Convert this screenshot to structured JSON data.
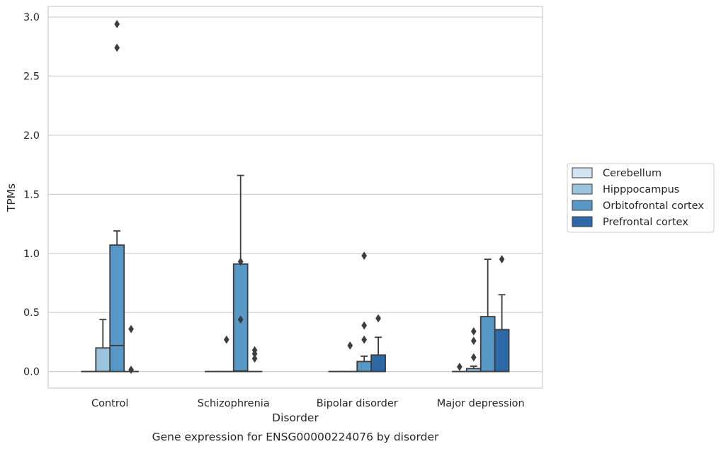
{
  "chart_data": {
    "type": "box",
    "title": "Gene expression for ENSG00000224076 by disorder",
    "xlabel": "Disorder",
    "ylabel": "TPMs",
    "ylim": [
      -0.14,
      3.09
    ],
    "yticks": [
      0.0,
      0.5,
      1.0,
      1.5,
      2.0,
      2.5,
      3.0
    ],
    "ytick_labels": [
      "0.0",
      "0.5",
      "1.0",
      "1.5",
      "2.0",
      "2.5",
      "3.0"
    ],
    "grid": "horizontal",
    "legend_position": "right",
    "categories": [
      "Control",
      "Schizophrenia",
      "Bipolar disorder",
      "Major depression"
    ],
    "series": [
      {
        "name": "Cerebellum",
        "color": "#d2e3f3",
        "boxes": [
          {
            "q1": 0,
            "median": 0,
            "q3": 0,
            "whisker_low": 0,
            "whisker_high": 0,
            "outliers": []
          },
          {
            "q1": 0,
            "median": 0,
            "q3": 0,
            "whisker_low": 0,
            "whisker_high": 0,
            "outliers": []
          },
          {
            "q1": 0,
            "median": 0,
            "q3": 0,
            "whisker_low": 0,
            "whisker_high": 0,
            "outliers": []
          },
          {
            "q1": 0,
            "median": 0,
            "q3": 0,
            "whisker_low": 0,
            "whisker_high": 0,
            "outliers": [
              0.04
            ]
          }
        ]
      },
      {
        "name": "Hipppocampus",
        "color": "#9ac3dc",
        "boxes": [
          {
            "q1": 0,
            "median": 0,
            "q3": 0.2,
            "whisker_low": 0,
            "whisker_high": 0.44,
            "outliers": []
          },
          {
            "q1": 0,
            "median": 0,
            "q3": 0,
            "whisker_low": 0,
            "whisker_high": 0,
            "outliers": [
              0.27
            ]
          },
          {
            "q1": 0,
            "median": 0,
            "q3": 0,
            "whisker_low": 0,
            "whisker_high": 0,
            "outliers": [
              0.22
            ]
          },
          {
            "q1": 0,
            "median": 0,
            "q3": 0.025,
            "whisker_low": 0,
            "whisker_high": 0.045,
            "outliers": [
              0.12,
              0.26,
              0.34
            ]
          }
        ]
      },
      {
        "name": "Orbitofrontal cortex",
        "color": "#5898c6",
        "boxes": [
          {
            "q1": 0,
            "median": 0.22,
            "q3": 1.07,
            "whisker_low": 0,
            "whisker_high": 1.19,
            "outliers": [
              2.74,
              2.94
            ]
          },
          {
            "q1": 0,
            "median": 0.005,
            "q3": 0.91,
            "whisker_low": 0,
            "whisker_high": 1.66,
            "outliers": [
              0.44,
              0.93
            ]
          },
          {
            "q1": 0,
            "median": 0.0,
            "q3": 0.085,
            "whisker_low": 0,
            "whisker_high": 0.13,
            "outliers": [
              0.27,
              0.39,
              0.98
            ]
          },
          {
            "q1": 0,
            "median": 0.0,
            "q3": 0.465,
            "whisker_low": 0,
            "whisker_high": 0.95,
            "outliers": []
          }
        ]
      },
      {
        "name": "Prefrontal cortex",
        "color": "#2c69a6",
        "boxes": [
          {
            "q1": 0,
            "median": 0,
            "q3": 0,
            "whisker_low": 0,
            "whisker_high": 0,
            "outliers": [
              0.015,
              0.36
            ]
          },
          {
            "q1": 0,
            "median": 0,
            "q3": 0,
            "whisker_low": 0,
            "whisker_high": 0,
            "outliers": [
              0.11,
              0.15,
              0.18
            ]
          },
          {
            "q1": 0,
            "median": 0,
            "q3": 0.14,
            "whisker_low": 0,
            "whisker_high": 0.29,
            "outliers": [
              0.45
            ]
          },
          {
            "q1": 0,
            "median": 0,
            "q3": 0.355,
            "whisker_low": 0,
            "whisker_high": 0.65,
            "outliers": [
              0.95
            ]
          }
        ]
      }
    ]
  }
}
